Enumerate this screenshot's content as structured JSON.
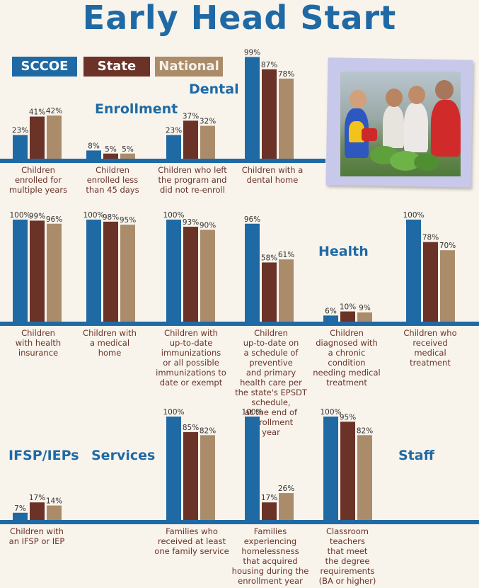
{
  "title": "Early Head Start",
  "legend": [
    {
      "label": "SCCOE",
      "color": "#1f6aa5",
      "text_color": "#ffffff"
    },
    {
      "label": "State",
      "color": "#6b3228",
      "text_color": "#ffffff"
    },
    {
      "label": "National",
      "color": "#ab8c6a",
      "text_color": "#f6f0e6"
    }
  ],
  "sections": {
    "enrollment": "Enrollment",
    "dental": "Dental",
    "health": "Health",
    "ifsp": "IFSP/IEPs",
    "services": "Services",
    "staff": "Staff"
  },
  "chart_data": [
    {
      "type": "bar",
      "series": [
        "SCCOE",
        "State",
        "National"
      ],
      "categories": [
        {
          "label": [
            "Children",
            "enrolled for",
            "multiple years"
          ],
          "values": [
            23,
            41,
            42
          ]
        },
        {
          "label": [
            "Children",
            "enrolled less",
            "than 45 days"
          ],
          "values": [
            8,
            5,
            5
          ]
        },
        {
          "label": [
            "Children who left",
            "the program and",
            "did not re-enroll"
          ],
          "values": [
            23,
            37,
            32
          ]
        },
        {
          "label": [
            "Children with a",
            "dental home"
          ],
          "values": [
            99,
            87,
            78
          ]
        }
      ]
    },
    {
      "type": "bar",
      "series": [
        "SCCOE",
        "State",
        "National"
      ],
      "categories": [
        {
          "label": [
            "Children",
            "with health",
            "insurance"
          ],
          "values": [
            100,
            99,
            96
          ]
        },
        {
          "label": [
            "Children with",
            "a medical",
            "home"
          ],
          "values": [
            100,
            98,
            95
          ]
        },
        {
          "label": [
            "Children with",
            "up-to-date",
            "immunizations",
            "or all possible",
            "immunizations to",
            "date or exempt"
          ],
          "values": [
            100,
            93,
            90
          ]
        },
        {
          "label": [
            "Children",
            "up-to-date on",
            "a schedule of",
            "preventive",
            "and primary",
            "health care per",
            "the state's EPSDT",
            "schedule,",
            "at the end of",
            "enrollment",
            "year"
          ],
          "values": [
            96,
            58,
            61
          ]
        },
        {
          "label": [
            "Children",
            "diagnosed with",
            "a chronic",
            "condition",
            "needing medical",
            "treatment"
          ],
          "values": [
            6,
            10,
            9
          ]
        },
        {
          "label": [
            "Children who",
            "received",
            "medical",
            "treatment"
          ],
          "values": [
            100,
            78,
            70
          ]
        }
      ]
    },
    {
      "type": "bar",
      "series": [
        "SCCOE",
        "State",
        "National"
      ],
      "categories": [
        {
          "label": [
            "Children with",
            "an IFSP or IEP"
          ],
          "values": [
            7,
            17,
            14
          ]
        },
        {
          "label": [
            "Families who",
            "received at least",
            "one family service"
          ],
          "values": [
            100,
            85,
            82
          ]
        },
        {
          "label": [
            "Families",
            "experiencing",
            "homelessness",
            "that acquired",
            "housing during the",
            "enrollment year"
          ],
          "values": [
            100,
            17,
            26
          ]
        },
        {
          "label": [
            "Classroom",
            "teachers",
            "that meet",
            "the degree",
            "requirements",
            "(BA or higher)"
          ],
          "values": [
            100,
            95,
            82
          ]
        }
      ]
    }
  ]
}
